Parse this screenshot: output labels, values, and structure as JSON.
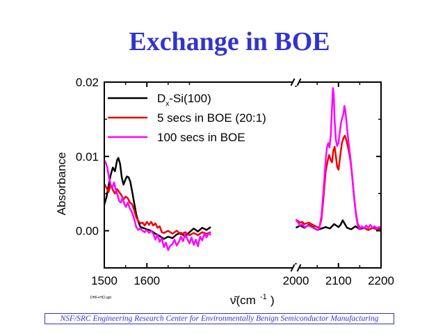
{
  "page": {
    "title": "Exchange in BOE",
    "footer": "NSF/SRC Engineering Research Center for Environmentally Benign Semiconductor Manufacturing",
    "file_code": "DHF+HCl.qpt"
  },
  "chart_data": {
    "type": "line",
    "title": "Exchange in BOE",
    "xlabel": "ν̄(cm⁻¹)",
    "ylabel": "Absorbance",
    "xlim": [
      1500,
      2200
    ],
    "ylim": [
      -0.005,
      0.02
    ],
    "x_axis_break": [
      1950,
      2000
    ],
    "x_ticks": [
      "1500",
      "1600",
      "2000",
      "2100",
      "2200"
    ],
    "y_ticks": [
      "0.00",
      "0.01",
      "0.02"
    ],
    "legend_position": "top-left",
    "series": [
      {
        "name": "Dx-Si(100)",
        "color": "#000000",
        "points": [
          [
            1500,
            0.0035
          ],
          [
            1505,
            0.0045
          ],
          [
            1510,
            0.006
          ],
          [
            1515,
            0.0075
          ],
          [
            1520,
            0.0085
          ],
          [
            1525,
            0.008
          ],
          [
            1530,
            0.0095
          ],
          [
            1533,
            0.0098
          ],
          [
            1537,
            0.009
          ],
          [
            1541,
            0.0072
          ],
          [
            1545,
            0.0062
          ],
          [
            1549,
            0.0068
          ],
          [
            1553,
            0.0073
          ],
          [
            1557,
            0.0072
          ],
          [
            1561,
            0.0066
          ],
          [
            1565,
            0.0054
          ],
          [
            1570,
            0.0038
          ],
          [
            1575,
            0.0022
          ],
          [
            1580,
            0.0012
          ],
          [
            1585,
            0.0005
          ],
          [
            1590,
            0.0004
          ],
          [
            1595,
            0.0003
          ],
          [
            1600,
            0.0002
          ],
          [
            1610,
            0.0
          ],
          [
            1620,
            -0.0004
          ],
          [
            1630,
            -0.0007
          ],
          [
            1640,
            -0.0011
          ],
          [
            1650,
            -0.0008
          ],
          [
            1660,
            -0.001
          ],
          [
            1670,
            -0.0005
          ],
          [
            1680,
            -0.0003
          ],
          [
            1690,
            -0.0008
          ],
          [
            1700,
            -0.0002
          ],
          [
            1710,
            0.0003
          ],
          [
            1720,
            -0.0001
          ],
          [
            1730,
            0.0004
          ],
          [
            1740,
            0.0001
          ],
          [
            1750,
            0.0005
          ],
          [
            2000,
            0.0004
          ],
          [
            2010,
            0.0007
          ],
          [
            2020,
            0.0004
          ],
          [
            2030,
            0.0008
          ],
          [
            2040,
            0.0005
          ],
          [
            2050,
            0.0001
          ],
          [
            2060,
            0.0003
          ],
          [
            2070,
            0.0005
          ],
          [
            2080,
            0.0003
          ],
          [
            2090,
            0.0009
          ],
          [
            2100,
            0.0005
          ],
          [
            2105,
            0.0008
          ],
          [
            2110,
            0.0014
          ],
          [
            2115,
            0.0009
          ],
          [
            2120,
            0.0004
          ],
          [
            2130,
            0.0002
          ],
          [
            2140,
            0.0006
          ],
          [
            2150,
            0.0002
          ],
          [
            2160,
            0.0004
          ],
          [
            2170,
            0.0001
          ],
          [
            2180,
            0.0004
          ],
          [
            2190,
            0.0002
          ],
          [
            2200,
            0.0003
          ]
        ]
      },
      {
        "name": "5 secs in BOE (20:1)",
        "color": "#ee0000",
        "points": [
          [
            1500,
            0.0063
          ],
          [
            1505,
            0.0058
          ],
          [
            1510,
            0.0052
          ],
          [
            1515,
            0.0062
          ],
          [
            1520,
            0.0055
          ],
          [
            1525,
            0.005
          ],
          [
            1530,
            0.0056
          ],
          [
            1535,
            0.0052
          ],
          [
            1540,
            0.0048
          ],
          [
            1545,
            0.0042
          ],
          [
            1550,
            0.0046
          ],
          [
            1555,
            0.0044
          ],
          [
            1560,
            0.0038
          ],
          [
            1565,
            0.0036
          ],
          [
            1570,
            0.0028
          ],
          [
            1575,
            0.0018
          ],
          [
            1580,
            0.0013
          ],
          [
            1585,
            0.001
          ],
          [
            1590,
            0.0011
          ],
          [
            1595,
            0.0007
          ],
          [
            1600,
            0.0012
          ],
          [
            1605,
            0.0008
          ],
          [
            1610,
            0.0012
          ],
          [
            1615,
            0.0007
          ],
          [
            1620,
            0.001
          ],
          [
            1625,
            0.0004
          ],
          [
            1630,
            0.0006
          ],
          [
            1635,
            -0.0002
          ],
          [
            1640,
            -0.0003
          ],
          [
            1650,
            0.0
          ],
          [
            1660,
            -0.0004
          ],
          [
            1670,
            0.0
          ],
          [
            1680,
            -0.0005
          ],
          [
            1690,
            -0.0002
          ],
          [
            1700,
            -0.0006
          ],
          [
            1710,
            -0.0003
          ],
          [
            1720,
            -0.0006
          ],
          [
            1730,
            -0.0002
          ],
          [
            1740,
            -0.0004
          ],
          [
            1750,
            -0.0002
          ],
          [
            2000,
            0.0015
          ],
          [
            2005,
            0.0013
          ],
          [
            2010,
            0.0011
          ],
          [
            2015,
            0.0012
          ],
          [
            2020,
            0.0009
          ],
          [
            2030,
            0.0011
          ],
          [
            2040,
            0.0008
          ],
          [
            2050,
            0.0005
          ],
          [
            2055,
            0.0004
          ],
          [
            2060,
            0.0015
          ],
          [
            2065,
            0.0045
          ],
          [
            2070,
            0.008
          ],
          [
            2075,
            0.0095
          ],
          [
            2078,
            0.0102
          ],
          [
            2082,
            0.0095
          ],
          [
            2085,
            0.0092
          ],
          [
            2088,
            0.0108
          ],
          [
            2091,
            0.0113
          ],
          [
            2094,
            0.01
          ],
          [
            2097,
            0.0086
          ],
          [
            2100,
            0.0082
          ],
          [
            2104,
            0.01
          ],
          [
            2108,
            0.0118
          ],
          [
            2112,
            0.0125
          ],
          [
            2115,
            0.0128
          ],
          [
            2118,
            0.0123
          ],
          [
            2121,
            0.0116
          ],
          [
            2124,
            0.0108
          ],
          [
            2128,
            0.0095
          ],
          [
            2132,
            0.0075
          ],
          [
            2136,
            0.005
          ],
          [
            2140,
            0.0028
          ],
          [
            2145,
            0.001
          ],
          [
            2150,
            0.0004
          ],
          [
            2160,
            0.0004
          ],
          [
            2170,
            0.0001
          ],
          [
            2180,
            0.0004
          ],
          [
            2190,
            0.0002
          ],
          [
            2200,
            0.0004
          ]
        ]
      },
      {
        "name": "100 secs in BOE",
        "color": "#ff00ff",
        "points": [
          [
            1500,
            0.0095
          ],
          [
            1503,
            0.0092
          ],
          [
            1507,
            0.0085
          ],
          [
            1511,
            0.0072
          ],
          [
            1515,
            0.0062
          ],
          [
            1519,
            0.0058
          ],
          [
            1523,
            0.0065
          ],
          [
            1527,
            0.0055
          ],
          [
            1531,
            0.0048
          ],
          [
            1535,
            0.004
          ],
          [
            1539,
            0.0038
          ],
          [
            1543,
            0.0045
          ],
          [
            1547,
            0.0036
          ],
          [
            1551,
            0.0032
          ],
          [
            1555,
            0.0038
          ],
          [
            1560,
            0.003
          ],
          [
            1565,
            0.0025
          ],
          [
            1570,
            0.0016
          ],
          [
            1575,
            0.0005
          ],
          [
            1580,
            0.0001
          ],
          [
            1585,
            0.0003
          ],
          [
            1590,
            0.0
          ],
          [
            1595,
            -0.0002
          ],
          [
            1600,
            0.0001
          ],
          [
            1605,
            -0.0003
          ],
          [
            1610,
            0.0
          ],
          [
            1615,
            -0.0004
          ],
          [
            1620,
            -0.0012
          ],
          [
            1625,
            -0.0005
          ],
          [
            1630,
            -0.0015
          ],
          [
            1635,
            -0.001
          ],
          [
            1640,
            -0.0022
          ],
          [
            1645,
            -0.0016
          ],
          [
            1650,
            -0.0026
          ],
          [
            1655,
            -0.002
          ],
          [
            1660,
            -0.0018
          ],
          [
            1665,
            -0.0012
          ],
          [
            1670,
            -0.002
          ],
          [
            1675,
            -0.0015
          ],
          [
            1680,
            -0.0008
          ],
          [
            1685,
            -0.0014
          ],
          [
            1690,
            -0.0004
          ],
          [
            1695,
            -0.0011
          ],
          [
            1700,
            -0.0017
          ],
          [
            1705,
            -0.0009
          ],
          [
            1710,
            -0.0019
          ],
          [
            1715,
            -0.0012
          ],
          [
            1720,
            -0.0021
          ],
          [
            1725,
            -0.0008
          ],
          [
            1730,
            -0.0013
          ],
          [
            1735,
            -0.0004
          ],
          [
            1740,
            -0.0009
          ],
          [
            1745,
            -0.0003
          ],
          [
            1750,
            -0.0006
          ],
          [
            2000,
            0.0015
          ],
          [
            2005,
            0.0011
          ],
          [
            2010,
            0.0007
          ],
          [
            2015,
            0.0009
          ],
          [
            2020,
            0.0005
          ],
          [
            2030,
            0.0007
          ],
          [
            2040,
            0.0004
          ],
          [
            2050,
            0.0001
          ],
          [
            2055,
            0.0003
          ],
          [
            2060,
            0.002
          ],
          [
            2065,
            0.0055
          ],
          [
            2070,
            0.0095
          ],
          [
            2073,
            0.0112
          ],
          [
            2076,
            0.0118
          ],
          [
            2079,
            0.0112
          ],
          [
            2082,
            0.0128
          ],
          [
            2085,
            0.0168
          ],
          [
            2087,
            0.0192
          ],
          [
            2089,
            0.0184
          ],
          [
            2091,
            0.0148
          ],
          [
            2094,
            0.0122
          ],
          [
            2097,
            0.0114
          ],
          [
            2100,
            0.0118
          ],
          [
            2103,
            0.0132
          ],
          [
            2106,
            0.0145
          ],
          [
            2109,
            0.0152
          ],
          [
            2112,
            0.0158
          ],
          [
            2114,
            0.0168
          ],
          [
            2116,
            0.0162
          ],
          [
            2119,
            0.0146
          ],
          [
            2122,
            0.0128
          ],
          [
            2126,
            0.0108
          ],
          [
            2130,
            0.0088
          ],
          [
            2134,
            0.0062
          ],
          [
            2138,
            0.0038
          ],
          [
            2142,
            0.0018
          ],
          [
            2146,
            0.0006
          ],
          [
            2150,
            0.0002
          ],
          [
            2155,
            0.0006
          ],
          [
            2160,
            0.0003
          ],
          [
            2165,
            0.0007
          ],
          [
            2170,
            0.0004
          ],
          [
            2175,
            0.0008
          ],
          [
            2180,
            0.0004
          ],
          [
            2185,
            0.0006
          ],
          [
            2190,
            0.0003
          ],
          [
            2195,
            0.0005
          ],
          [
            2200,
            0.0004
          ]
        ]
      }
    ]
  }
}
